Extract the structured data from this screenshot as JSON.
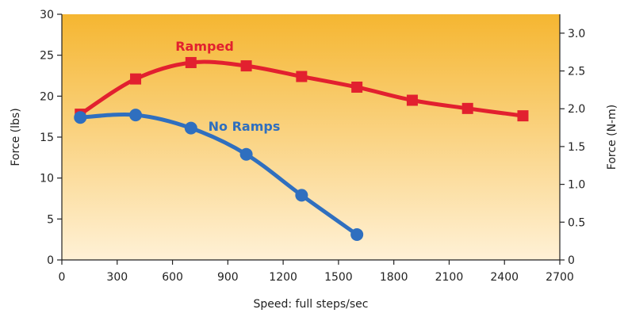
{
  "chart_data": {
    "type": "line",
    "xlabel": "Speed: full steps/sec",
    "ylabel": "Force (lbs)",
    "y2label": "Force (N-m)",
    "xlim": [
      0,
      2700
    ],
    "ylim": [
      0,
      30
    ],
    "y2lim": [
      0,
      3.25
    ],
    "xticks": [
      "0",
      "300",
      "600",
      "900",
      "1200",
      "1500",
      "1800",
      "2100",
      "2400",
      "2700"
    ],
    "yticks": [
      "0",
      "5",
      "10",
      "15",
      "20",
      "25",
      "30"
    ],
    "y2ticks": [
      "0",
      "0.5",
      "1.0",
      "1.5",
      "2.0",
      "2.5",
      "3.0"
    ],
    "grid": false,
    "background_gradient": [
      "#f5b631",
      "#fff1d6"
    ],
    "series": [
      {
        "name": "Ramped",
        "color": "#e2202f",
        "marker": "square",
        "x": [
          100,
          400,
          700,
          1000,
          1300,
          1600,
          1900,
          2200,
          2500
        ],
        "y": [
          17.8,
          22.1,
          24.1,
          23.7,
          22.4,
          21.1,
          19.5,
          18.5,
          17.6
        ]
      },
      {
        "name": "No Ramps",
        "color": "#2f6fbf",
        "marker": "circle",
        "x": [
          100,
          400,
          700,
          1000,
          1300,
          1600
        ],
        "y": [
          17.4,
          17.7,
          16.1,
          12.9,
          7.9,
          3.1
        ]
      }
    ]
  }
}
